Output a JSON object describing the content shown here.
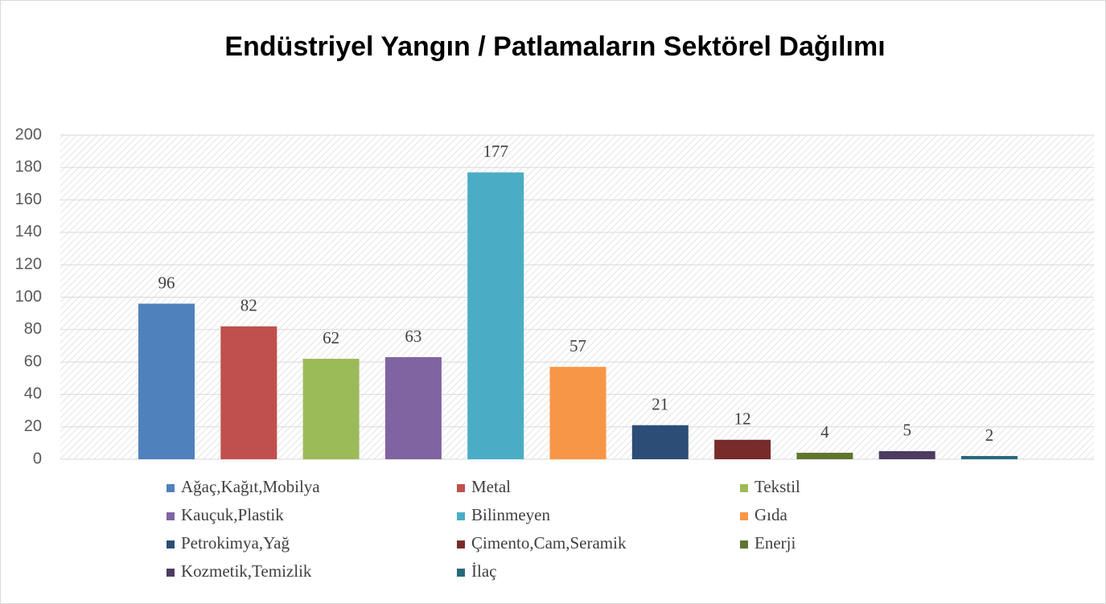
{
  "chart_data": {
    "type": "bar",
    "title": "Endüstriyel Yangın / Patlamaların Sektörel Dağılımı",
    "ylim": [
      0,
      200
    ],
    "yticks": [
      0,
      20,
      40,
      60,
      80,
      100,
      120,
      140,
      160,
      180,
      200
    ],
    "grid": true,
    "legend": "bottom",
    "series": [
      {
        "name": "Ağaç,Kağıt,Mobilya",
        "color": "#4f81bd",
        "values": [
          96
        ]
      },
      {
        "name": "Metal",
        "color": "#c0504d",
        "values": [
          82
        ]
      },
      {
        "name": "Tekstil",
        "color": "#9bbb59",
        "values": [
          62
        ]
      },
      {
        "name": "Kauçuk,Plastik",
        "color": "#8064a2",
        "values": [
          63
        ]
      },
      {
        "name": "Bilinmeyen",
        "color": "#4bacc6",
        "values": [
          177
        ]
      },
      {
        "name": "Gıda",
        "color": "#f79646",
        "values": [
          57
        ]
      },
      {
        "name": "Petrokimya,Yağ",
        "color": "#2c4d75",
        "values": [
          21
        ]
      },
      {
        "name": "Çimento,Cam,Seramik",
        "color": "#772c2a",
        "values": [
          12
        ]
      },
      {
        "name": "Enerji",
        "color": "#5f7530",
        "values": [
          4
        ]
      },
      {
        "name": "Kozmetik,Temizlik",
        "color": "#4d3b62",
        "values": [
          5
        ]
      },
      {
        "name": "İlaç",
        "color": "#276a7c",
        "values": [
          2
        ]
      }
    ]
  }
}
